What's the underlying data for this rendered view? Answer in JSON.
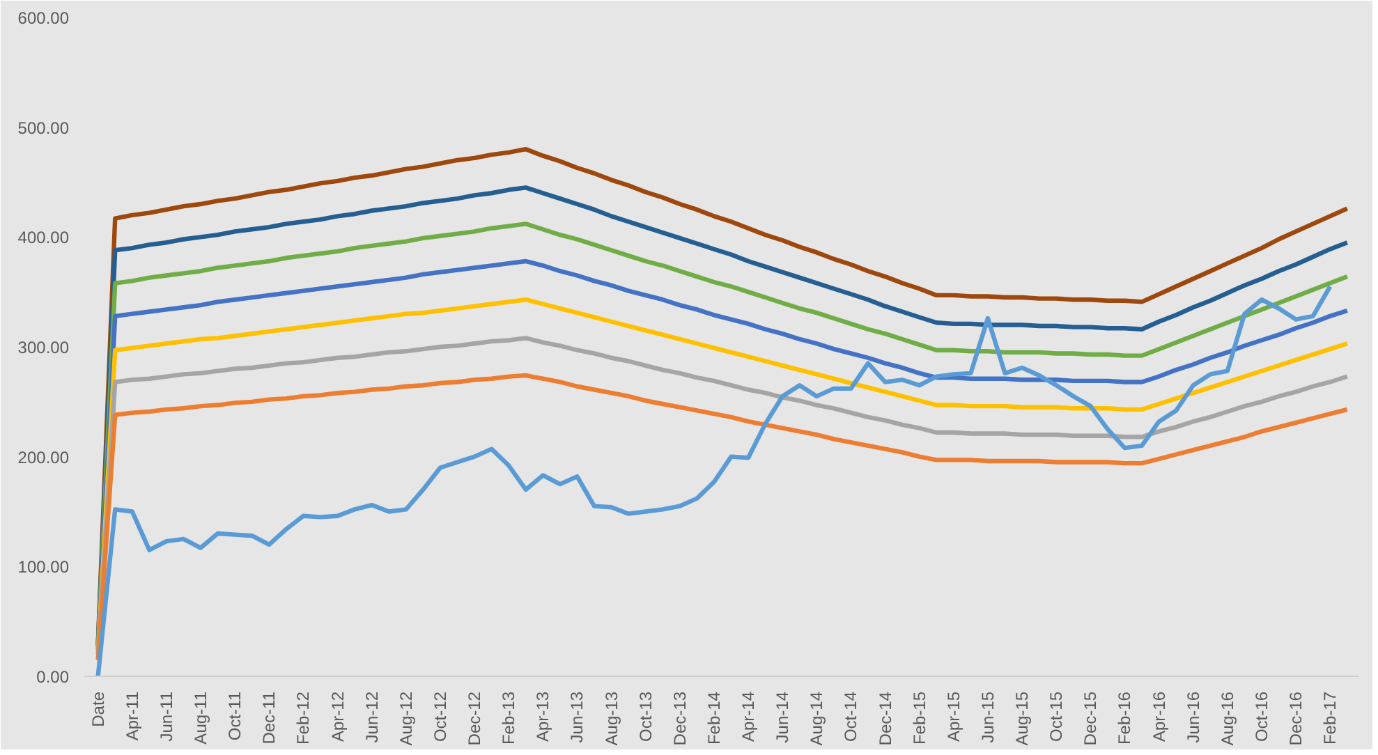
{
  "chart_data": {
    "type": "line",
    "categories": [
      "Date",
      null,
      "Apr-11",
      null,
      "Jun-11",
      null,
      "Aug-11",
      null,
      "Oct-11",
      null,
      "Dec-11",
      null,
      "Feb-12",
      null,
      "Apr-12",
      null,
      "Jun-12",
      null,
      "Aug-12",
      null,
      "Oct-12",
      null,
      "Dec-12",
      null,
      "Feb-13",
      null,
      "Apr-13",
      null,
      "Jun-13",
      null,
      "Aug-13",
      null,
      "Oct-13",
      null,
      "Dec-13",
      null,
      "Feb-14",
      null,
      "Apr-14",
      null,
      "Jun-14",
      null,
      "Aug-14",
      null,
      "Oct-14",
      null,
      "Dec-14",
      null,
      "Feb-15",
      null,
      "Apr-15",
      null,
      "Jun-15",
      null,
      "Aug-15",
      null,
      "Oct-15",
      null,
      "Dec-15",
      null,
      "Feb-16",
      null,
      "Apr-16",
      null,
      "Jun-16",
      null,
      "Aug-16",
      null,
      "Oct-16",
      null,
      "Dec-16",
      null,
      "Feb-17",
      null
    ],
    "series": [
      {
        "color": "#9e480e",
        "values": [
          30,
          417,
          420,
          422,
          425,
          428,
          430,
          433,
          435,
          438,
          441,
          443,
          446,
          449,
          451,
          454,
          456,
          459,
          462,
          464,
          467,
          470,
          472,
          475,
          477,
          480,
          474,
          469,
          463,
          458,
          452,
          447,
          441,
          436,
          430,
          425,
          419,
          414,
          408,
          402,
          397,
          391,
          386,
          380,
          375,
          369,
          364,
          358,
          353,
          347,
          347,
          346,
          346,
          345,
          345,
          344,
          344,
          343,
          343,
          342,
          342,
          341,
          348,
          355,
          362,
          369,
          376,
          383,
          390,
          398,
          405,
          412,
          419,
          426
        ]
      },
      {
        "color": "#255e91",
        "values": [
          28,
          388,
          390,
          393,
          395,
          398,
          400,
          402,
          405,
          407,
          409,
          412,
          414,
          416,
          419,
          421,
          424,
          426,
          428,
          431,
          433,
          435,
          438,
          440,
          443,
          445,
          440,
          435,
          430,
          425,
          419,
          414,
          409,
          404,
          399,
          394,
          389,
          384,
          378,
          373,
          368,
          363,
          358,
          353,
          348,
          343,
          337,
          332,
          327,
          322,
          321,
          321,
          320,
          320,
          320,
          319,
          319,
          318,
          318,
          317,
          317,
          316,
          323,
          329,
          336,
          342,
          349,
          356,
          362,
          369,
          375,
          382,
          389,
          395
        ]
      },
      {
        "color": "#70ad47",
        "values": [
          28,
          358,
          360,
          363,
          365,
          367,
          369,
          372,
          374,
          376,
          378,
          381,
          383,
          385,
          387,
          390,
          392,
          394,
          396,
          399,
          401,
          403,
          405,
          408,
          410,
          412,
          407,
          402,
          398,
          393,
          388,
          383,
          378,
          374,
          369,
          364,
          359,
          355,
          350,
          345,
          340,
          335,
          331,
          326,
          321,
          316,
          312,
          307,
          302,
          297,
          297,
          296,
          296,
          295,
          295,
          295,
          294,
          294,
          293,
          293,
          292,
          292,
          298,
          304,
          310,
          316,
          322,
          328,
          334,
          340,
          346,
          352,
          358,
          364
        ]
      },
      {
        "color": "#4472c4",
        "values": [
          25,
          328,
          330,
          332,
          334,
          336,
          338,
          341,
          343,
          345,
          347,
          349,
          351,
          353,
          355,
          357,
          359,
          361,
          363,
          366,
          368,
          370,
          372,
          374,
          376,
          378,
          374,
          369,
          365,
          360,
          356,
          351,
          347,
          343,
          338,
          334,
          329,
          325,
          321,
          316,
          312,
          307,
          303,
          298,
          294,
          290,
          285,
          281,
          276,
          272,
          272,
          271,
          271,
          271,
          270,
          270,
          270,
          269,
          269,
          269,
          268,
          268,
          273,
          279,
          284,
          290,
          295,
          301,
          306,
          311,
          317,
          322,
          328,
          333
        ]
      },
      {
        "color": "#ffc000",
        "values": [
          22,
          297,
          299,
          301,
          303,
          305,
          307,
          308,
          310,
          312,
          314,
          316,
          318,
          320,
          322,
          324,
          326,
          328,
          330,
          331,
          333,
          335,
          337,
          339,
          341,
          343,
          339,
          335,
          331,
          327,
          323,
          319,
          315,
          311,
          307,
          303,
          299,
          295,
          291,
          287,
          283,
          279,
          275,
          271,
          267,
          263,
          259,
          255,
          251,
          247,
          247,
          246,
          246,
          246,
          245,
          245,
          245,
          244,
          244,
          244,
          243,
          243,
          248,
          253,
          258,
          263,
          268,
          273,
          278,
          283,
          288,
          293,
          298,
          303
        ]
      },
      {
        "color": "#a5a5a5",
        "values": [
          20,
          268,
          270,
          271,
          273,
          275,
          276,
          278,
          280,
          281,
          283,
          285,
          286,
          288,
          290,
          291,
          293,
          295,
          296,
          298,
          300,
          301,
          303,
          305,
          306,
          308,
          304,
          301,
          297,
          294,
          290,
          287,
          283,
          279,
          276,
          272,
          269,
          265,
          261,
          258,
          254,
          251,
          247,
          244,
          240,
          236,
          233,
          229,
          226,
          222,
          222,
          221,
          221,
          221,
          220,
          220,
          220,
          219,
          219,
          219,
          218,
          218,
          223,
          227,
          232,
          236,
          241,
          246,
          250,
          255,
          259,
          264,
          268,
          273
        ]
      },
      {
        "color": "#ed7d31",
        "values": [
          15,
          238,
          240,
          241,
          243,
          244,
          246,
          247,
          249,
          250,
          252,
          253,
          255,
          256,
          258,
          259,
          261,
          262,
          264,
          265,
          267,
          268,
          270,
          271,
          273,
          274,
          271,
          268,
          264,
          261,
          258,
          255,
          251,
          248,
          245,
          242,
          239,
          236,
          232,
          229,
          226,
          223,
          220,
          216,
          213,
          210,
          207,
          204,
          200,
          197,
          197,
          197,
          196,
          196,
          196,
          196,
          195,
          195,
          195,
          195,
          194,
          194,
          198,
          202,
          206,
          210,
          214,
          218,
          223,
          227,
          231,
          235,
          239,
          243
        ]
      },
      {
        "color": "#5b9bd5",
        "values": [
          0,
          152,
          150,
          115,
          123,
          125,
          117,
          130,
          129,
          128,
          120,
          134,
          146,
          145,
          146,
          152,
          156,
          150,
          152,
          170,
          190,
          195,
          200,
          207,
          192,
          170,
          183,
          175,
          182,
          155,
          154,
          148,
          150,
          152,
          155,
          162,
          177,
          200,
          199,
          230,
          255,
          265,
          255,
          262,
          262,
          285,
          268,
          270,
          265,
          273,
          275,
          276,
          326,
          276,
          281,
          274,
          265,
          255,
          246,
          225,
          208,
          210,
          232,
          242,
          265,
          275,
          278,
          330,
          343,
          335,
          325,
          328,
          355,
          null
        ]
      }
    ],
    "ylim": [
      0,
      600
    ],
    "yticks": [
      {
        "value": 0,
        "label": "0.00"
      },
      {
        "value": 100,
        "label": "100.00"
      },
      {
        "value": 200,
        "label": "200.00"
      },
      {
        "value": 300,
        "label": "300.00"
      },
      {
        "value": 400,
        "label": "400.00"
      },
      {
        "value": 500,
        "label": "500.00"
      },
      {
        "value": 600,
        "label": "600.00"
      }
    ],
    "marker": "none",
    "line_style": "solid"
  }
}
